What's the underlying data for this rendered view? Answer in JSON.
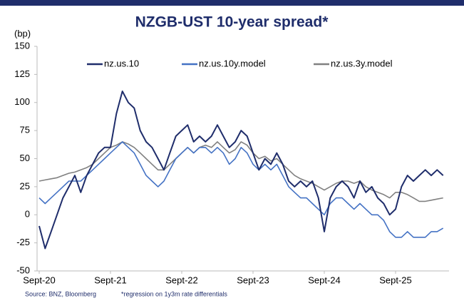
{
  "chart_data": {
    "type": "line",
    "title": "NZGB-UST 10-year spread*",
    "y_label": "(bp)",
    "annotations": [
      "Source: BNZ, Bloomberg",
      "*regression on 1y3m rate differentials"
    ],
    "x": [
      "2020-09",
      "2020-10",
      "2020-11",
      "2020-12",
      "2021-01",
      "2021-02",
      "2021-03",
      "2021-04",
      "2021-05",
      "2021-06",
      "2021-07",
      "2021-08",
      "2021-09",
      "2021-10",
      "2021-11",
      "2021-12",
      "2022-01",
      "2022-02",
      "2022-03",
      "2022-04",
      "2022-05",
      "2022-06",
      "2022-07",
      "2022-08",
      "2022-09",
      "2022-10",
      "2022-11",
      "2022-12",
      "2023-01",
      "2023-02",
      "2023-03",
      "2023-04",
      "2023-05",
      "2023-06",
      "2023-07",
      "2023-08",
      "2023-09",
      "2023-10",
      "2023-11",
      "2023-12",
      "2024-01",
      "2024-02",
      "2024-03",
      "2024-04",
      "2024-05",
      "2024-06",
      "2024-07",
      "2024-08",
      "2024-09",
      "2024-10",
      "2024-11",
      "2024-12",
      "2025-01",
      "2025-02",
      "2025-03",
      "2025-04",
      "2025-05",
      "2025-06",
      "2025-07",
      "2025-08",
      "2025-09",
      "2025-10",
      "2025-11",
      "2025-12",
      "2026-01",
      "2026-02",
      "2026-03",
      "2026-04",
      "2026-05"
    ],
    "series": [
      {
        "name": "nz.us.10",
        "color": "#1f2d6b",
        "values": [
          -10,
          -30,
          -15,
          0,
          15,
          25,
          35,
          20,
          35,
          45,
          55,
          60,
          60,
          90,
          110,
          100,
          95,
          75,
          65,
          60,
          50,
          40,
          55,
          70,
          75,
          80,
          65,
          70,
          65,
          70,
          80,
          70,
          60,
          65,
          75,
          70,
          55,
          40,
          50,
          45,
          55,
          45,
          30,
          25,
          30,
          25,
          30,
          15,
          -15,
          15,
          25,
          30,
          25,
          15,
          30,
          20,
          25,
          15,
          10,
          0,
          5,
          25,
          35,
          30,
          35,
          40,
          35,
          40,
          35
        ]
      },
      {
        "name": "nz.us.10y.model",
        "color": "#4472c4",
        "values": [
          15,
          10,
          15,
          20,
          25,
          30,
          30,
          30,
          35,
          40,
          45,
          50,
          55,
          60,
          65,
          60,
          55,
          45,
          35,
          30,
          25,
          30,
          40,
          50,
          55,
          60,
          55,
          60,
          60,
          55,
          60,
          55,
          45,
          50,
          60,
          55,
          45,
          40,
          45,
          40,
          45,
          35,
          25,
          20,
          15,
          15,
          10,
          5,
          0,
          10,
          15,
          15,
          10,
          5,
          10,
          5,
          0,
          0,
          -5,
          -15,
          -20,
          -20,
          -15,
          -20,
          -20,
          -20,
          -15,
          -15,
          -12
        ]
      },
      {
        "name": "nz.us.3y.model",
        "color": "#808080",
        "values": [
          30,
          31,
          32,
          33,
          35,
          37,
          38,
          40,
          42,
          45,
          50,
          55,
          60,
          62,
          65,
          63,
          60,
          55,
          50,
          45,
          40,
          40,
          45,
          50,
          55,
          60,
          55,
          60,
          62,
          60,
          65,
          60,
          55,
          58,
          65,
          62,
          55,
          50,
          52,
          48,
          50,
          45,
          40,
          35,
          32,
          30,
          28,
          25,
          22,
          25,
          28,
          30,
          30,
          28,
          30,
          25,
          22,
          20,
          18,
          15,
          20,
          20,
          18,
          15,
          12,
          12,
          13,
          14,
          15
        ]
      }
    ],
    "ylim": [
      -50,
      150
    ],
    "yticks": [
      -50,
      -25,
      0,
      25,
      50,
      75,
      100,
      125,
      150
    ],
    "xticks": [
      {
        "value": "2020-09",
        "label": "Sept-20"
      },
      {
        "value": "2021-09",
        "label": "Sept-21"
      },
      {
        "value": "2022-09",
        "label": "Sept-22"
      },
      {
        "value": "2023-09",
        "label": "Sept-23"
      },
      {
        "value": "2024-09",
        "label": "Sept-24"
      },
      {
        "value": "2025-09",
        "label": "Sept-25"
      }
    ],
    "legend": "top",
    "grid": false
  }
}
